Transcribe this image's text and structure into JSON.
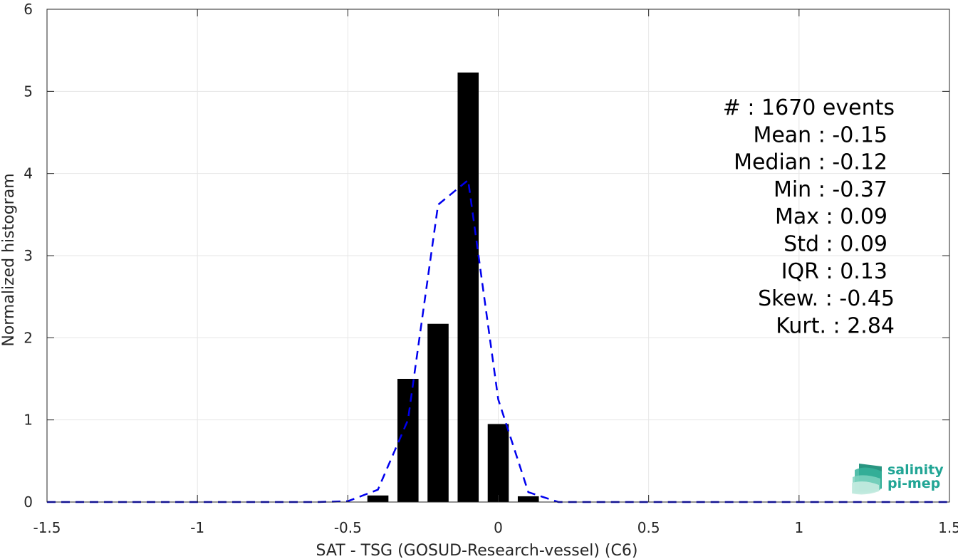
{
  "chart_data": {
    "type": "bar",
    "title": "",
    "xlabel": "SAT - TSG (GOSUD-Research-vessel) (C6)",
    "ylabel": "Normalized histogram",
    "xlim": [
      -1.5,
      1.5
    ],
    "ylim": [
      0,
      6
    ],
    "xticks": [
      -1.5,
      -1,
      -0.5,
      0,
      0.5,
      1,
      1.5
    ],
    "xtick_labels": [
      "-1.5",
      "-1",
      "-0.5",
      "0",
      "0.5",
      "1",
      "1.5"
    ],
    "yticks": [
      0,
      1,
      2,
      3,
      4,
      5,
      6
    ],
    "ytick_labels": [
      "0",
      "1",
      "2",
      "3",
      "4",
      "5",
      "6"
    ],
    "grid": true,
    "bar_width": 0.07,
    "bars": {
      "x": [
        -0.4,
        -0.3,
        -0.2,
        -0.1,
        0.0,
        0.1
      ],
      "values": [
        0.08,
        1.5,
        2.17,
        5.23,
        0.95,
        0.07
      ],
      "color": "#000000"
    },
    "fit_curve": {
      "style": "dashed",
      "color": "#0000ee",
      "x": [
        -1.5,
        -1.4,
        -1.3,
        -1.2,
        -1.1,
        -1.0,
        -0.9,
        -0.8,
        -0.7,
        -0.6,
        -0.5,
        -0.4,
        -0.3,
        -0.2,
        -0.1,
        0.0,
        0.1,
        0.2,
        0.3,
        0.4,
        0.5,
        0.6,
        0.7,
        0.8,
        0.9,
        1.0,
        1.1,
        1.2,
        1.3,
        1.4,
        1.5
      ],
      "y": [
        0,
        0,
        0,
        0,
        0,
        0,
        0,
        0,
        0,
        0,
        0.01,
        0.15,
        1.0,
        3.62,
        3.92,
        1.25,
        0.12,
        0,
        0,
        0,
        0,
        0,
        0,
        0,
        0,
        0,
        0,
        0,
        0,
        0,
        0
      ]
    },
    "stats_placement": "top-right",
    "stats": [
      "#  : 1670 events",
      "Mean : -0.15",
      "Median : -0.12",
      "Min : -0.37",
      "Max : 0.09",
      "Std : 0.09",
      "IQR : 0.13",
      "Skew. : -0.45",
      "Kurt. : 2.84"
    ]
  },
  "logo": {
    "line1": "salinity",
    "line2": "pi-mep",
    "color": "#21a595",
    "icon": "wave-stack-icon"
  }
}
